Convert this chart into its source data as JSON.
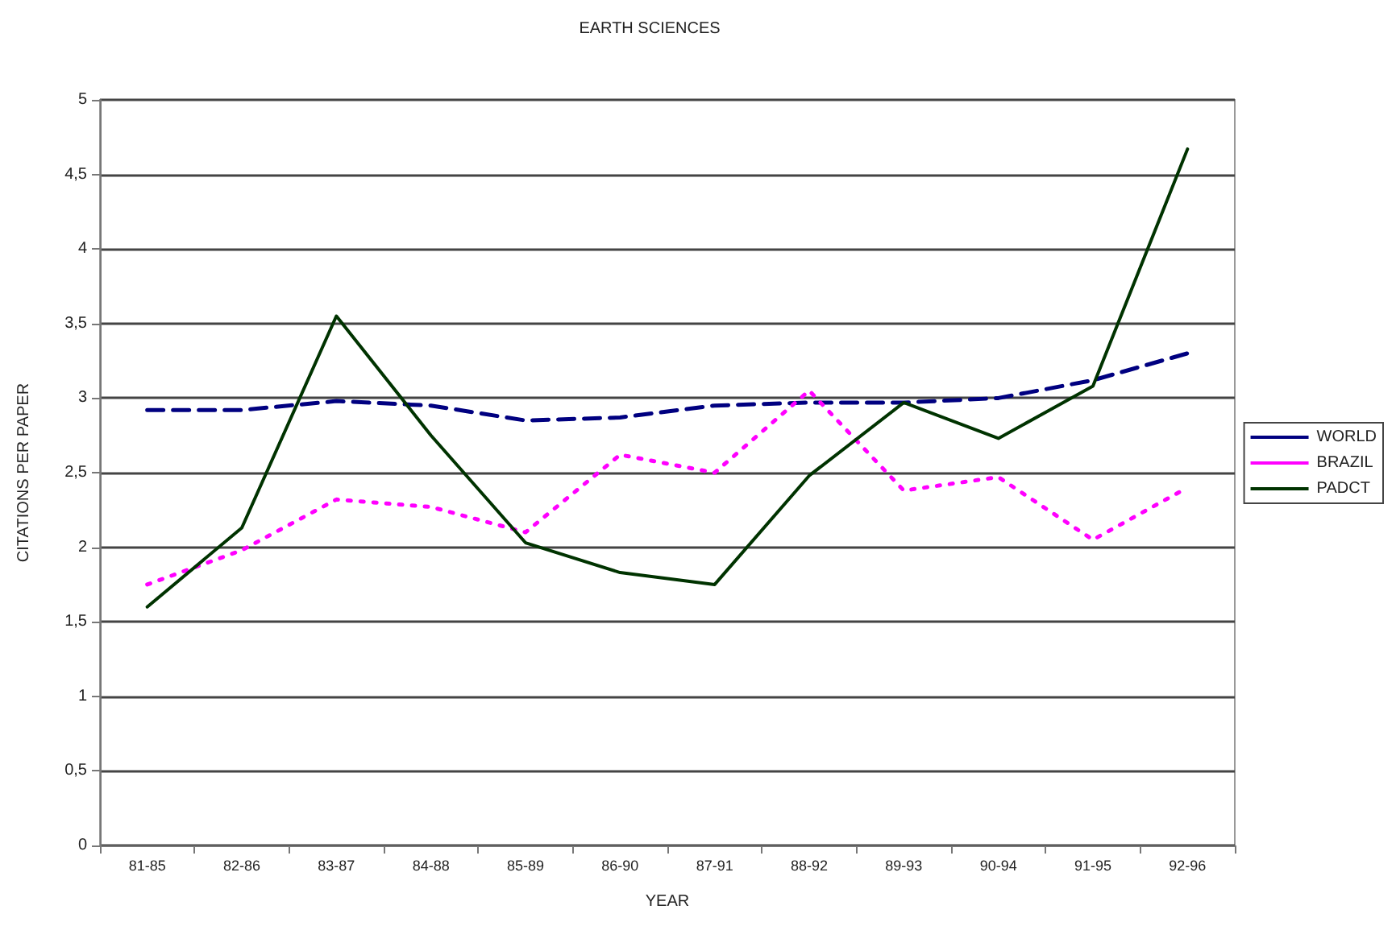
{
  "chart_data": {
    "type": "line",
    "title": "EARTH SCIENCES",
    "xlabel": "YEAR",
    "ylabel": "CITATIONS PER PAPER",
    "categories": [
      "81-85",
      "82-86",
      "83-87",
      "84-88",
      "85-89",
      "86-90",
      "87-91",
      "88-92",
      "89-93",
      "90-94",
      "91-95",
      "92-96"
    ],
    "series": [
      {
        "name": "WORLD",
        "color": "#000080",
        "line_style": "dashed",
        "values": [
          2.92,
          2.92,
          2.98,
          2.95,
          2.85,
          2.87,
          2.95,
          2.97,
          2.97,
          3.0,
          3.12,
          3.3
        ]
      },
      {
        "name": "BRAZIL",
        "color": "#ff00ff",
        "line_style": "dotted",
        "values": [
          1.75,
          1.98,
          2.32,
          2.27,
          2.1,
          2.62,
          2.5,
          3.05,
          2.38,
          2.47,
          2.05,
          2.4
        ]
      },
      {
        "name": "PADCT",
        "color": "#003300",
        "line_style": "solid",
        "values": [
          1.6,
          2.13,
          3.55,
          2.75,
          2.03,
          1.83,
          1.75,
          2.48,
          2.97,
          2.73,
          3.08,
          4.67
        ]
      }
    ],
    "ylim": [
      0,
      5
    ],
    "yticks": [
      0,
      {
        "value": 0.5,
        "label": "0,5"
      },
      1,
      {
        "value": 1.5,
        "label": "1,5"
      },
      2,
      {
        "value": 2.5,
        "label": "2,5"
      },
      3,
      {
        "value": 3.5,
        "label": "3,5"
      },
      4,
      {
        "value": 4.5,
        "label": "4,5"
      },
      5
    ],
    "grid": "y",
    "legend": "right",
    "marker": "none"
  }
}
